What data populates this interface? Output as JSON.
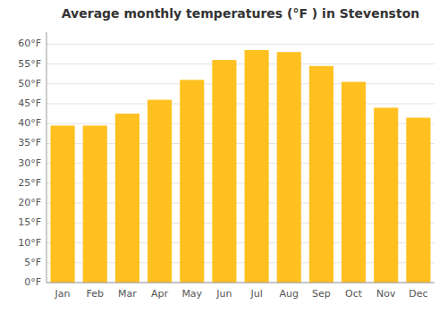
{
  "chart_data": {
    "type": "bar",
    "title": "Average monthly temperatures (°F ) in Stevenston",
    "categories": [
      "Jan",
      "Feb",
      "Mar",
      "Apr",
      "May",
      "Jun",
      "Jul",
      "Aug",
      "Sep",
      "Oct",
      "Nov",
      "Dec"
    ],
    "values": [
      39.5,
      39.5,
      42.5,
      46.0,
      51.0,
      56.0,
      58.5,
      58.0,
      54.5,
      50.5,
      44.0,
      41.5
    ],
    "color": "#FFC020",
    "ylim": [
      0,
      63
    ],
    "yticks": [
      {
        "value": 0,
        "label": "0°F"
      },
      {
        "value": 5,
        "label": "5°F"
      },
      {
        "value": 10,
        "label": "10°F"
      },
      {
        "value": 15,
        "label": "15°F"
      },
      {
        "value": 20,
        "label": "20°F"
      },
      {
        "value": 25,
        "label": "25°F"
      },
      {
        "value": 30,
        "label": "30°F"
      },
      {
        "value": 35,
        "label": "35°F"
      },
      {
        "value": 40,
        "label": "40°F"
      },
      {
        "value": 45,
        "label": "45°F"
      },
      {
        "value": 50,
        "label": "50°F"
      },
      {
        "value": 55,
        "label": "55°F"
      },
      {
        "value": 60,
        "label": "60°F"
      }
    ],
    "grid": true
  }
}
